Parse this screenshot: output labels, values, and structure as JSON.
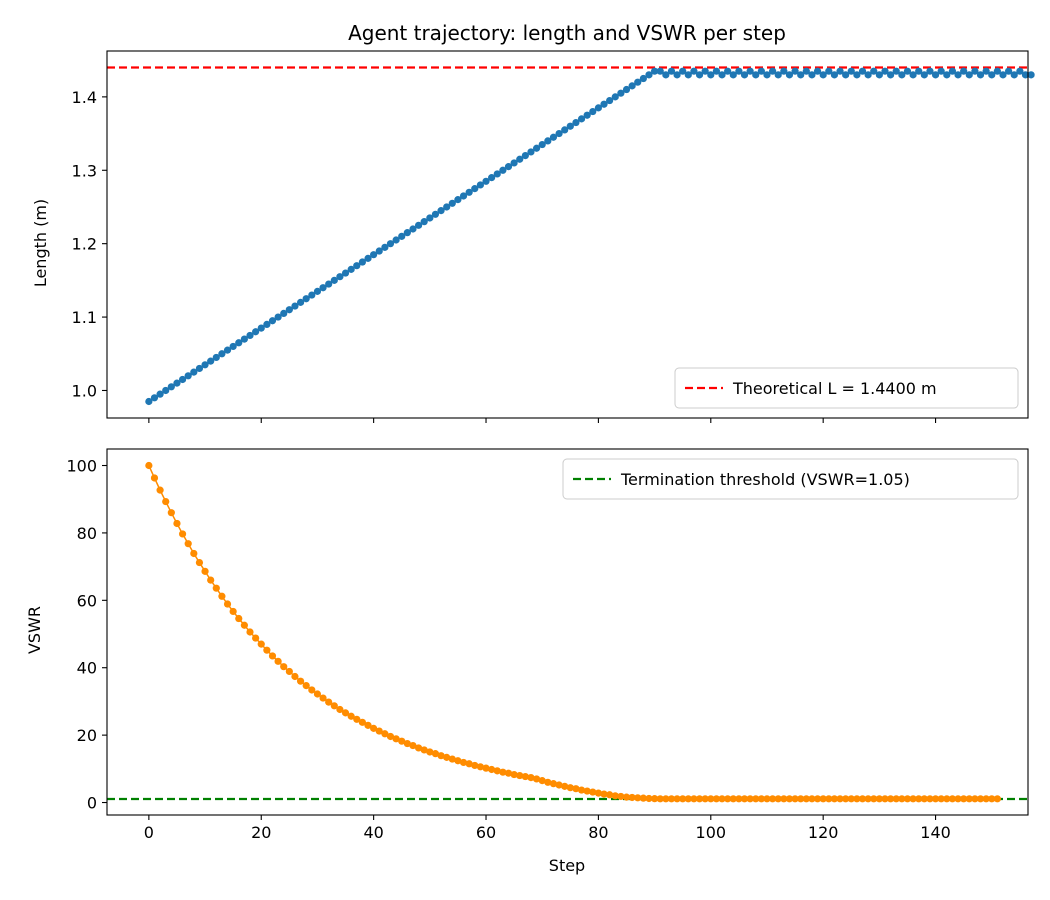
{
  "chart_data": [
    {
      "type": "line",
      "title": "Agent trajectory: length and VSWR per step",
      "xlabel": "",
      "ylabel": "Length (m)",
      "xlim": [
        -7.45,
        156.45
      ],
      "ylim": [
        0.9625,
        1.4625
      ],
      "xticks": [
        0,
        20,
        40,
        60,
        80,
        100,
        120,
        140
      ],
      "xtick_labels_shown": false,
      "yticks": [
        1.0,
        1.1,
        1.2,
        1.3,
        1.4
      ],
      "ytick_labels": [
        "1.0",
        "1.1",
        "1.2",
        "1.3",
        "1.4"
      ],
      "grid": false,
      "legend_location": "lower-right",
      "series": [
        {
          "name": "",
          "color": "#1f77b4",
          "marker": "circle",
          "x_start": 0,
          "x_step": 1,
          "values": [
            0.985,
            0.99,
            0.995,
            1.0,
            1.005,
            1.01,
            1.015,
            1.02,
            1.025,
            1.03,
            1.035,
            1.04,
            1.045,
            1.05,
            1.055,
            1.06,
            1.065,
            1.07,
            1.075,
            1.08,
            1.085,
            1.09,
            1.095,
            1.1,
            1.105,
            1.11,
            1.115,
            1.12,
            1.125,
            1.13,
            1.135,
            1.14,
            1.145,
            1.15,
            1.155,
            1.16,
            1.165,
            1.17,
            1.175,
            1.18,
            1.185,
            1.19,
            1.195,
            1.2,
            1.205,
            1.21,
            1.215,
            1.22,
            1.225,
            1.23,
            1.235,
            1.24,
            1.245,
            1.25,
            1.255,
            1.26,
            1.265,
            1.27,
            1.275,
            1.28,
            1.285,
            1.29,
            1.295,
            1.3,
            1.305,
            1.31,
            1.315,
            1.32,
            1.325,
            1.33,
            1.335,
            1.34,
            1.345,
            1.35,
            1.355,
            1.36,
            1.365,
            1.37,
            1.375,
            1.38,
            1.385,
            1.39,
            1.395,
            1.4,
            1.405,
            1.41,
            1.415,
            1.42,
            1.425,
            1.43,
            1.435,
            1.435,
            1.43,
            1.435,
            1.43,
            1.435,
            1.43,
            1.435,
            1.43,
            1.435,
            1.43,
            1.435,
            1.43,
            1.435,
            1.43,
            1.435,
            1.43,
            1.435,
            1.43,
            1.435,
            1.43,
            1.435,
            1.43,
            1.435,
            1.43,
            1.435,
            1.43,
            1.435,
            1.43,
            1.435,
            1.43,
            1.435,
            1.43,
            1.435,
            1.43,
            1.435,
            1.43,
            1.435,
            1.43,
            1.435,
            1.43,
            1.435,
            1.43,
            1.435,
            1.43,
            1.435,
            1.43,
            1.435,
            1.43,
            1.435,
            1.43,
            1.435,
            1.43,
            1.435,
            1.43,
            1.435,
            1.43,
            1.435,
            1.43,
            1.435,
            1.43,
            1.435,
            1.43,
            1.435,
            1.43,
            1.435,
            1.43,
            1.43
          ]
        }
      ],
      "reference_lines": [
        {
          "label": "Theoretical L = 1.4400 m",
          "y": 1.44,
          "color": "#ff0000",
          "style": "dashed"
        }
      ]
    },
    {
      "type": "line",
      "title": "",
      "xlabel": "Step",
      "ylabel": "VSWR",
      "xlim": [
        -7.45,
        156.45
      ],
      "ylim": [
        -3.7,
        104.9
      ],
      "xticks": [
        0,
        20,
        40,
        60,
        80,
        100,
        120,
        140
      ],
      "xtick_labels": [
        "0",
        "20",
        "40",
        "60",
        "80",
        "100",
        "120",
        "140"
      ],
      "yticks": [
        0,
        20,
        40,
        60,
        80,
        100
      ],
      "ytick_labels": [
        "0",
        "20",
        "40",
        "60",
        "80",
        "100"
      ],
      "grid": false,
      "legend_location": "upper-right",
      "series": [
        {
          "name": "",
          "color": "#ff8c00",
          "marker": "circle",
          "x_start": 0,
          "x_step": 1,
          "values": [
            100,
            96.3,
            92.7,
            89.3,
            86.0,
            82.8,
            79.7,
            76.8,
            73.9,
            71.2,
            68.6,
            66.0,
            63.6,
            61.2,
            58.9,
            56.7,
            54.6,
            52.6,
            50.6,
            48.8,
            47.0,
            45.2,
            43.5,
            41.9,
            40.3,
            38.9,
            37.4,
            36.0,
            34.7,
            33.4,
            32.2,
            31.0,
            29.8,
            28.7,
            27.6,
            26.6,
            25.6,
            24.7,
            23.8,
            22.9,
            22.0,
            21.2,
            20.4,
            19.6,
            18.9,
            18.2,
            17.5,
            16.9,
            16.2,
            15.6,
            15.0,
            14.5,
            13.9,
            13.4,
            12.9,
            12.4,
            11.9,
            11.5,
            11.0,
            10.6,
            10.2,
            9.8,
            9.4,
            9.0,
            8.7,
            8.3,
            8.0,
            7.7,
            7.4,
            7.0,
            6.5,
            6.0,
            5.6,
            5.2,
            4.8,
            4.4,
            4.1,
            3.7,
            3.4,
            3.1,
            2.8,
            2.5,
            2.3,
            2.0,
            1.8,
            1.6,
            1.5,
            1.4,
            1.3,
            1.2,
            1.15,
            1.1,
            1.1,
            1.1,
            1.1,
            1.1,
            1.1,
            1.1,
            1.1,
            1.1,
            1.1,
            1.1,
            1.1,
            1.1,
            1.1,
            1.1,
            1.1,
            1.1,
            1.1,
            1.1,
            1.1,
            1.1,
            1.1,
            1.1,
            1.1,
            1.1,
            1.1,
            1.1,
            1.1,
            1.1,
            1.1,
            1.1,
            1.1,
            1.1,
            1.1,
            1.1,
            1.1,
            1.1,
            1.1,
            1.1,
            1.1,
            1.1,
            1.1,
            1.1,
            1.1,
            1.1,
            1.1,
            1.1,
            1.1,
            1.1,
            1.1,
            1.1,
            1.1,
            1.1,
            1.1,
            1.1,
            1.1,
            1.1,
            1.1,
            1.1,
            1.1,
            1.1
          ]
        }
      ],
      "reference_lines": [
        {
          "label": "Termination threshold (VSWR=1.05)",
          "y": 1.05,
          "color": "#008000",
          "style": "dashed"
        }
      ]
    }
  ]
}
